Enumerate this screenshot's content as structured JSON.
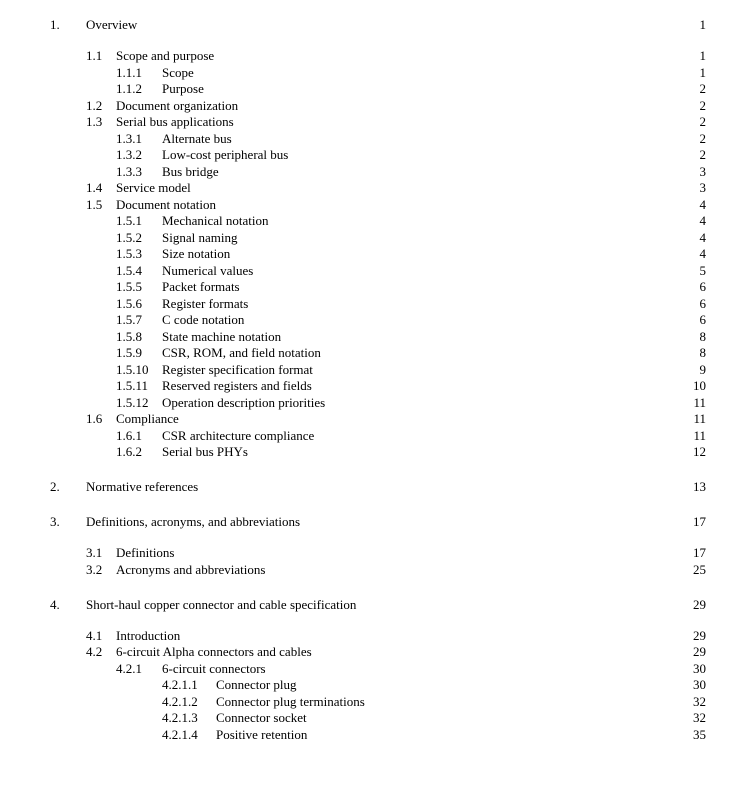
{
  "font_family": "Times New Roman",
  "base_font_size_pt": 10,
  "text_color": "#000000",
  "background_color": "#ffffff",
  "leader_char": ".",
  "entries": [
    {
      "level": 1,
      "num": "1.",
      "label": "Overview",
      "page": "1",
      "gap": "none"
    },
    {
      "level": 2,
      "num": "1.1",
      "label": "Scope and purpose",
      "page": "1",
      "gap": "l2"
    },
    {
      "level": 3,
      "num": "1.1.1",
      "label": "Scope",
      "page": "1"
    },
    {
      "level": 3,
      "num": "1.1.2",
      "label": "Purpose",
      "page": "2"
    },
    {
      "level": 2,
      "num": "1.2",
      "label": "Document organization",
      "page": "2"
    },
    {
      "level": 2,
      "num": "1.3",
      "label": "Serial bus applications",
      "page": "2"
    },
    {
      "level": 3,
      "num": "1.3.1",
      "label": "Alternate bus",
      "page": "2"
    },
    {
      "level": 3,
      "num": "1.3.2",
      "label": "Low-cost peripheral bus",
      "page": "2"
    },
    {
      "level": 3,
      "num": "1.3.3",
      "label": "Bus bridge",
      "page": "3"
    },
    {
      "level": 2,
      "num": "1.4",
      "label": "Service model",
      "page": "3"
    },
    {
      "level": 2,
      "num": "1.5",
      "label": "Document notation",
      "page": "4"
    },
    {
      "level": 3,
      "num": "1.5.1",
      "label": "Mechanical notation",
      "page": "4"
    },
    {
      "level": 3,
      "num": "1.5.2",
      "label": "Signal naming",
      "page": "4"
    },
    {
      "level": 3,
      "num": "1.5.3",
      "label": "Size notation",
      "page": "4"
    },
    {
      "level": 3,
      "num": "1.5.4",
      "label": "Numerical values",
      "page": "5"
    },
    {
      "level": 3,
      "num": "1.5.5",
      "label": "Packet formats",
      "page": "6"
    },
    {
      "level": 3,
      "num": "1.5.6",
      "label": "Register formats",
      "page": "6"
    },
    {
      "level": 3,
      "num": "1.5.7",
      "label": "C code notation",
      "page": "6"
    },
    {
      "level": 3,
      "num": "1.5.8",
      "label": "State machine notation",
      "page": "8"
    },
    {
      "level": 3,
      "num": "1.5.9",
      "label": "CSR, ROM, and field notation",
      "page": "8"
    },
    {
      "level": 3,
      "num": "1.5.10",
      "label": "Register specification format",
      "page": "9"
    },
    {
      "level": 3,
      "num": "1.5.11",
      "label": "Reserved registers and fields",
      "page": "10"
    },
    {
      "level": 3,
      "num": "1.5.12",
      "label": "Operation description priorities",
      "page": "11"
    },
    {
      "level": 2,
      "num": "1.6",
      "label": "Compliance",
      "page": "11"
    },
    {
      "level": 3,
      "num": "1.6.1",
      "label": "CSR architecture compliance",
      "page": "11"
    },
    {
      "level": 3,
      "num": "1.6.2",
      "label": "Serial bus PHYs",
      "page": "12"
    },
    {
      "level": 1,
      "num": "2.",
      "label": "Normative references",
      "page": "13",
      "gap": "l1"
    },
    {
      "level": 1,
      "num": "3.",
      "label": "Definitions, acronyms, and abbreviations",
      "page": "17",
      "gap": "l1"
    },
    {
      "level": 2,
      "num": "3.1",
      "label": "Definitions",
      "page": "17",
      "gap": "l2"
    },
    {
      "level": 2,
      "num": "3.2",
      "label": "Acronyms and abbreviations",
      "page": "25"
    },
    {
      "level": 1,
      "num": "4.",
      "label": "Short-haul copper connector and cable specification",
      "page": "29",
      "gap": "l1"
    },
    {
      "level": 2,
      "num": "4.1",
      "label": "Introduction",
      "page": "29",
      "gap": "l2"
    },
    {
      "level": 2,
      "num": "4.2",
      "label": "6-circuit Alpha connectors and cables",
      "page": "29"
    },
    {
      "level": 3,
      "num": "4.2.1",
      "label": "6-circuit connectors",
      "page": "30"
    },
    {
      "level": 4,
      "num": "4.2.1.1",
      "label": "Connector plug",
      "page": "30"
    },
    {
      "level": 4,
      "num": "4.2.1.2",
      "label": "Connector plug terminations",
      "page": "32"
    },
    {
      "level": 4,
      "num": "4.2.1.3",
      "label": "Connector socket",
      "page": "32"
    },
    {
      "level": 4,
      "num": "4.2.1.4",
      "label": "Positive retention",
      "page": "35"
    }
  ]
}
